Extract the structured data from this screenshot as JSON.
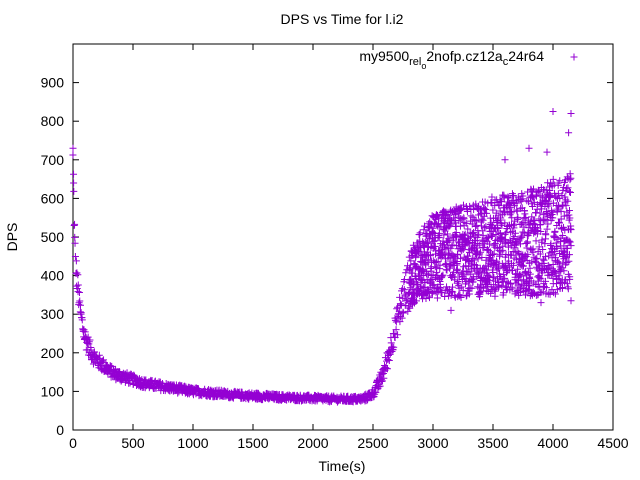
{
  "chart_data": {
    "type": "scatter",
    "title": "DPS vs Time for l.i2",
    "xlabel": "Time(s)",
    "ylabel": "DPS",
    "xlim": [
      0,
      4500
    ],
    "ylim": [
      0,
      1000
    ],
    "x_ticks": [
      "0",
      "500",
      "1000",
      "1500",
      "2000",
      "2500",
      "3000",
      "3500",
      "4000",
      "4500"
    ],
    "y_ticks": [
      "0",
      "100",
      "200",
      "300",
      "400",
      "500",
      "600",
      "700",
      "800",
      "900"
    ],
    "legend": {
      "position": "top-right",
      "label_parts": [
        "my9500",
        "rel",
        "o",
        "2nofp.cz12a",
        "c",
        "24r64"
      ]
    },
    "marker": "+",
    "series_color": "#9400d3",
    "series": [
      {
        "name": "my9500_rel_o2nofp.cz12a_c24r64",
        "x": [
          0,
          5,
          10,
          15,
          20,
          25,
          30,
          40,
          50,
          60,
          70,
          80,
          90,
          100,
          120,
          140,
          160,
          180,
          200,
          250,
          300,
          350,
          400,
          450,
          500,
          600,
          700,
          800,
          900,
          1000,
          1100,
          1200,
          1300,
          1400,
          1500,
          1600,
          1700,
          1800,
          1900,
          2000,
          2100,
          2200,
          2300,
          2400,
          2450,
          2500,
          2550,
          2600,
          2650,
          2700,
          2750,
          2800,
          2850,
          2900,
          2950,
          3000,
          3100,
          3200,
          3300,
          3400,
          3500,
          3600,
          3700,
          3800,
          3900,
          4000,
          4050,
          4100,
          4150
        ],
        "y": [
          700,
          620,
          540,
          480,
          450,
          420,
          400,
          370,
          340,
          310,
          290,
          270,
          255,
          240,
          225,
          210,
          198,
          188,
          180,
          168,
          155,
          145,
          140,
          135,
          130,
          120,
          115,
          110,
          105,
          100,
          98,
          95,
          92,
          90,
          88,
          87,
          85,
          84,
          83,
          82,
          81,
          80,
          80,
          80,
          85,
          95,
          120,
          160,
          220,
          280,
          340,
          380,
          410,
          430,
          440,
          450,
          455,
          460,
          465,
          470,
          475,
          480,
          480,
          485,
          490,
          500,
          505,
          510,
          515
        ],
        "spread": [
          40,
          40,
          40,
          40,
          35,
          35,
          35,
          35,
          30,
          30,
          30,
          28,
          28,
          26,
          25,
          24,
          22,
          22,
          20,
          18,
          16,
          15,
          15,
          14,
          13,
          12,
          12,
          11,
          11,
          10,
          10,
          10,
          9,
          9,
          9,
          9,
          8,
          8,
          8,
          8,
          8,
          8,
          8,
          8,
          10,
          12,
          18,
          25,
          30,
          40,
          55,
          70,
          80,
          90,
          100,
          110,
          115,
          120,
          120,
          125,
          130,
          130,
          135,
          140,
          140,
          150,
          150,
          150,
          150
        ]
      }
    ],
    "outliers": [
      {
        "x": 4000,
        "y": 825
      },
      {
        "x": 4150,
        "y": 820
      },
      {
        "x": 4130,
        "y": 770
      },
      {
        "x": 3950,
        "y": 720
      },
      {
        "x": 3600,
        "y": 700
      },
      {
        "x": 3800,
        "y": 730
      },
      {
        "x": 0,
        "y": 730
      },
      {
        "x": 5,
        "y": 640
      },
      {
        "x": 4150,
        "y": 335
      },
      {
        "x": 3900,
        "y": 330
      },
      {
        "x": 3150,
        "y": 310
      }
    ]
  }
}
